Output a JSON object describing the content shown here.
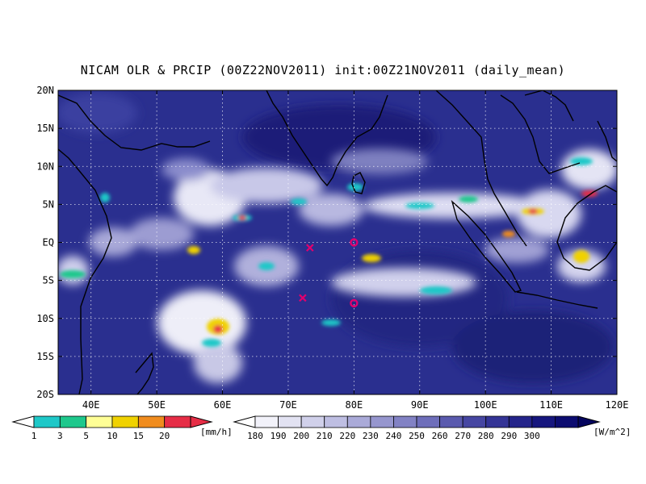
{
  "title": "NICAM OLR & PRCIP (00Z22NOV2011) init:00Z21NOV2011 (daily_mean)",
  "axes": {
    "lat_labels": [
      "20N",
      "15N",
      "10N",
      "5N",
      "EQ",
      "5S",
      "10S",
      "15S",
      "20S"
    ],
    "lat_values": [
      20,
      15,
      10,
      5,
      0,
      -5,
      -10,
      -15,
      -20
    ],
    "lon_labels": [
      "40E",
      "50E",
      "60E",
      "70E",
      "80E",
      "90E",
      "100E",
      "110E",
      "120E"
    ],
    "lon_values": [
      40,
      50,
      60,
      70,
      80,
      90,
      100,
      110,
      120
    ],
    "lon_range": [
      35,
      120
    ],
    "lat_range": [
      -20,
      20
    ]
  },
  "map_colors": {
    "ocean_background": "#2a2f8f",
    "cloud_light": "#f4f4fb",
    "coastline": "#000000"
  },
  "markers": [
    {
      "type": "cross",
      "lon": 73.3,
      "lat": -0.7,
      "color": "#e0006e"
    },
    {
      "type": "cross",
      "lon": 72.2,
      "lat": -7.3,
      "color": "#e0006e"
    },
    {
      "type": "circle",
      "lon": 80.0,
      "lat": 0.0,
      "color": "#e0006e"
    },
    {
      "type": "circle",
      "lon": 80.0,
      "lat": -8.0,
      "color": "#e0006e"
    }
  ],
  "precip_colorbar": {
    "labels": [
      "1",
      "3",
      "5",
      "10",
      "15",
      "20"
    ],
    "unit": "[mm/h]",
    "colors": [
      "#1ec8c8",
      "#1ec88c",
      "#ffff96",
      "#f0d200",
      "#f08c1e",
      "#e62d46"
    ]
  },
  "olr_colorbar": {
    "labels": [
      "180",
      "190",
      "200",
      "210",
      "220",
      "230",
      "240",
      "250",
      "260",
      "270",
      "280",
      "290",
      "300"
    ],
    "unit": "[W/m^2]",
    "colors": [
      "#f2f2fa",
      "#e2e2f2",
      "#d0d0ea",
      "#bebee2",
      "#aaaad8",
      "#9696ce",
      "#8282c4",
      "#6e6eba",
      "#5a5aae",
      "#4646a2",
      "#343496",
      "#24248a",
      "#16167e",
      "#0c0c70"
    ]
  }
}
